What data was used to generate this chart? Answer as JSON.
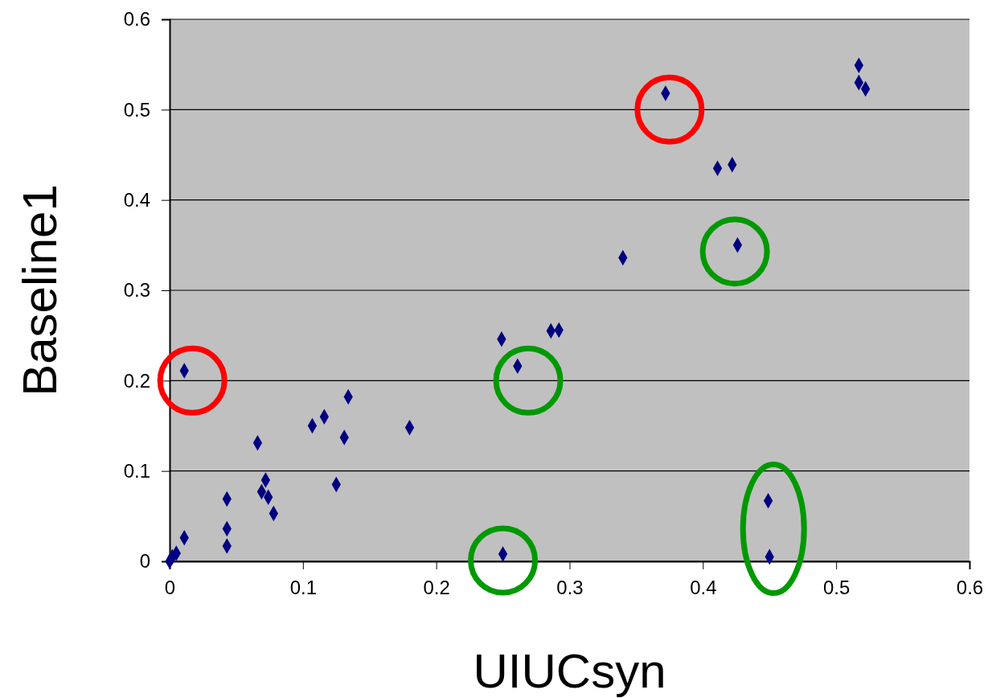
{
  "chart_data": {
    "type": "scatter",
    "xlabel": "UIUCsyn",
    "ylabel": "Baseline1",
    "xlim": [
      0,
      0.6
    ],
    "ylim": [
      0,
      0.6
    ],
    "xticks": [
      0,
      0.1,
      0.2,
      0.3,
      0.4,
      0.5,
      0.6
    ],
    "yticks": [
      0,
      0.1,
      0.2,
      0.3,
      0.4,
      0.5,
      0.6
    ],
    "grid": "y",
    "marker": "diamond",
    "series": [
      {
        "color": "#000080",
        "x": [
          0,
          0.002,
          0.005,
          0.011,
          0.011,
          0.043,
          0.043,
          0.043,
          0.066,
          0.069,
          0.072,
          0.074,
          0.078,
          0.107,
          0.116,
          0.125,
          0.131,
          0.134,
          0.18,
          0.249,
          0.261,
          0.25,
          0.286,
          0.292,
          0.34,
          0.372,
          0.411,
          0.422,
          0.426,
          0.449,
          0.45,
          0.517,
          0.517,
          0.522
        ],
        "values": [
          0,
          0.005,
          0.009,
          0.026,
          0.211,
          0.017,
          0.036,
          0.069,
          0.131,
          0.077,
          0.09,
          0.071,
          0.053,
          0.15,
          0.16,
          0.085,
          0.137,
          0.182,
          0.148,
          0.246,
          0.216,
          0.008,
          0.255,
          0.256,
          0.336,
          0.518,
          0.435,
          0.439,
          0.35,
          0.067,
          0.005,
          0.549,
          0.53,
          0.523
        ]
      }
    ]
  }
}
